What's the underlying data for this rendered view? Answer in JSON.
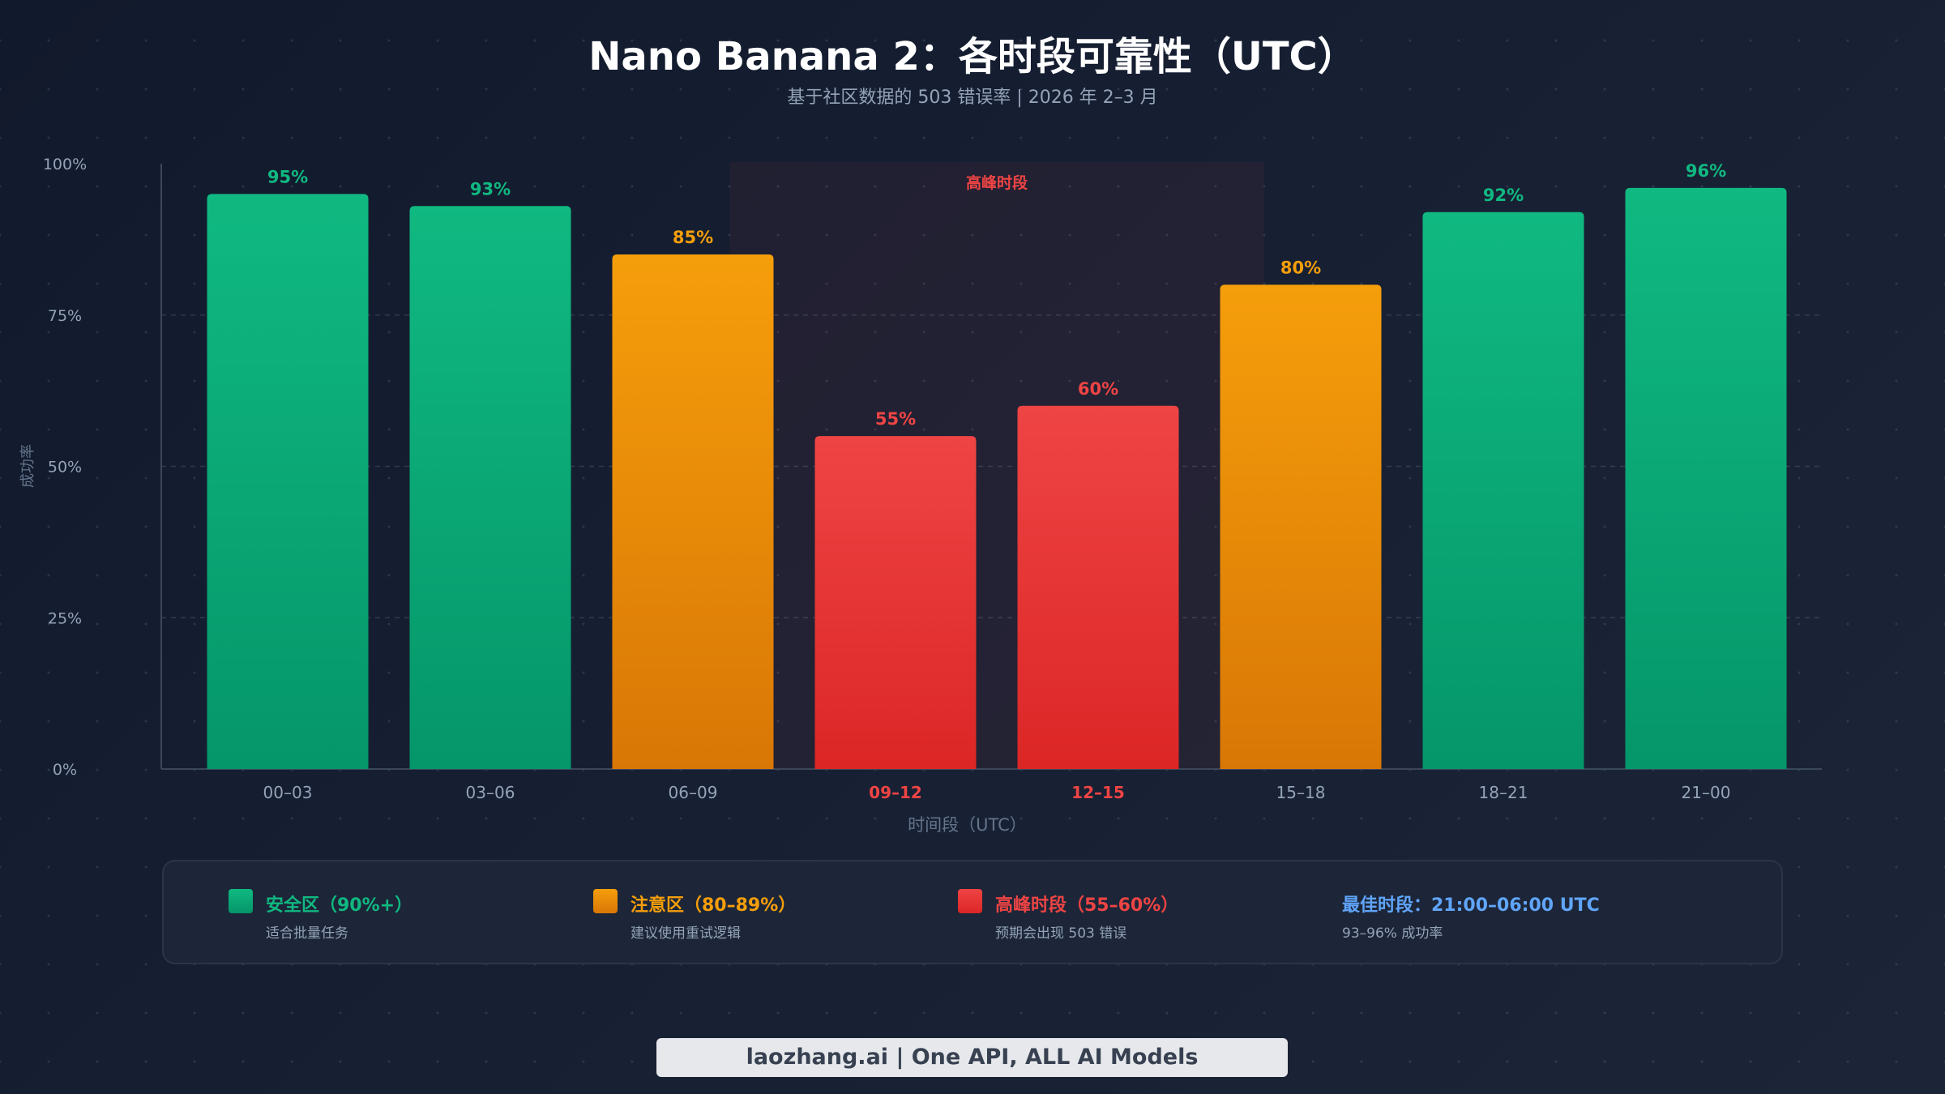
{
  "title": "Nano Banana 2：各时段可靠性（UTC）",
  "subtitle": "基于社区数据的 503 错误率 | 2026 年 2–3 月",
  "chart_data": {
    "type": "bar",
    "xlabel": "时间段（UTC）",
    "ylabel": "成功率",
    "ylim": [
      0,
      100
    ],
    "yticks": [
      "0%",
      "25%",
      "50%",
      "75%",
      "100%"
    ],
    "grid": "horizontal dashed",
    "categories": [
      "00–03",
      "03–06",
      "06–09",
      "09–12",
      "12–15",
      "15–18",
      "18–21",
      "21–00"
    ],
    "values": [
      95,
      93,
      85,
      55,
      60,
      80,
      92,
      96
    ],
    "value_labels": [
      "95%",
      "93%",
      "85%",
      "55%",
      "60%",
      "80%",
      "92%",
      "96%"
    ],
    "zones": [
      "safe",
      "safe",
      "caution",
      "peak",
      "peak",
      "caution",
      "safe",
      "safe"
    ],
    "highlight": {
      "label": "高峰时段",
      "from": "09–12",
      "to": "12–15"
    }
  },
  "colors": {
    "safe": [
      "#10b981",
      "#059669"
    ],
    "caution": [
      "#f59e0b",
      "#d97706"
    ],
    "peak": [
      "#ef4444",
      "#dc2626"
    ],
    "best": "#60a5fa",
    "axis_text": "#94a3b8"
  },
  "legend": [
    {
      "title": "安全区（90%+）",
      "desc": "适合批量任务",
      "zone": "safe"
    },
    {
      "title": "注意区（80–89%）",
      "desc": "建议使用重试逻辑",
      "zone": "caution"
    },
    {
      "title": "高峰时段（55–60%）",
      "desc": "预期会出现 503 错误",
      "zone": "peak"
    },
    {
      "title": "最佳时段：21:00–06:00 UTC",
      "desc": "93–96% 成功率",
      "zone": "best"
    }
  ],
  "footer": "laozhang.ai | One API, ALL AI Models"
}
